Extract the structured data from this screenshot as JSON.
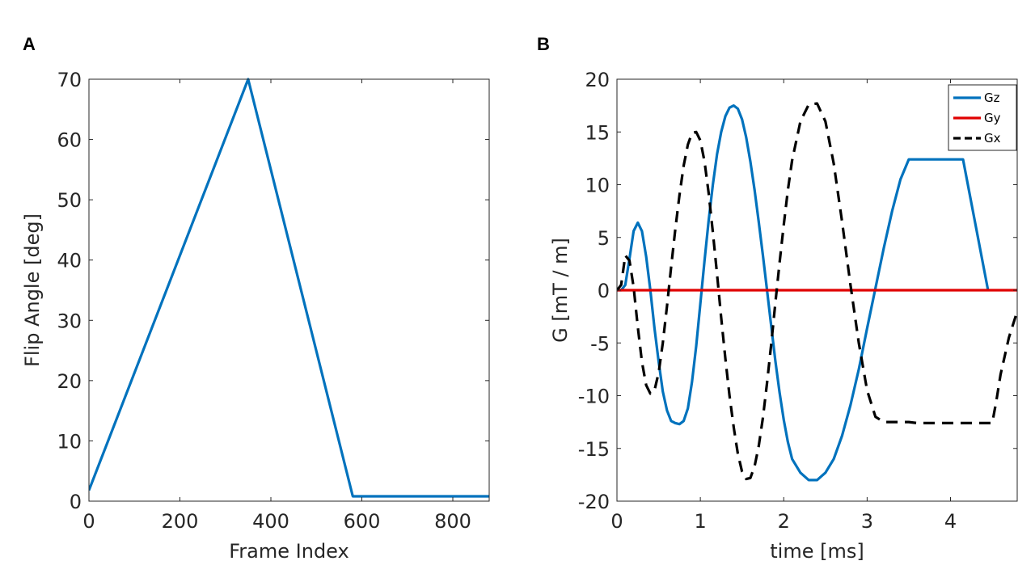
{
  "panels": {
    "a_label": "A",
    "b_label": "B"
  },
  "chart_data": [
    {
      "id": "A",
      "type": "line",
      "title": "",
      "xlabel": "Frame Index",
      "ylabel": "Flip Angle [deg]",
      "xlim": [
        0,
        880
      ],
      "ylim": [
        0,
        70
      ],
      "xticks": [
        0,
        200,
        400,
        600,
        800
      ],
      "yticks": [
        0,
        10,
        20,
        30,
        40,
        50,
        60,
        70
      ],
      "grid": false,
      "series": [
        {
          "name": "Flip Angle",
          "color": "#0072BD",
          "x": [
            0,
            350,
            580,
            880
          ],
          "y": [
            1.8,
            70,
            0.8,
            0.8
          ]
        }
      ]
    },
    {
      "id": "B",
      "type": "line",
      "title": "",
      "xlabel": "time [ms]",
      "ylabel": "G [mT / m]",
      "xlim": [
        0,
        4.8
      ],
      "ylim": [
        -20,
        20
      ],
      "xticks": [
        0,
        1,
        2,
        3,
        4
      ],
      "yticks": [
        -20,
        -15,
        -10,
        -5,
        0,
        5,
        10,
        15,
        20
      ],
      "grid": false,
      "legend": "top-right",
      "series": [
        {
          "name": "Gz",
          "color": "#0072BD",
          "style": "solid",
          "x": [
            0,
            0.05,
            0.1,
            0.15,
            0.2,
            0.25,
            0.3,
            0.35,
            0.4,
            0.45,
            0.5,
            0.55,
            0.6,
            0.65,
            0.7,
            0.75,
            0.8,
            0.85,
            0.9,
            0.95,
            1.0,
            1.05,
            1.1,
            1.15,
            1.2,
            1.25,
            1.3,
            1.35,
            1.4,
            1.45,
            1.5,
            1.55,
            1.6,
            1.65,
            1.7,
            1.75,
            1.8,
            1.85,
            1.9,
            1.95,
            2.0,
            2.05,
            2.1,
            2.2,
            2.3,
            2.4,
            2.5,
            2.6,
            2.7,
            2.8,
            2.9,
            3.0,
            3.1,
            3.2,
            3.3,
            3.4,
            3.5,
            3.6,
            3.7,
            3.75,
            4.15,
            4.45
          ],
          "y": [
            0,
            0,
            0.5,
            3.0,
            5.6,
            6.4,
            5.6,
            3.2,
            0.0,
            -3.6,
            -6.8,
            -9.6,
            -11.4,
            -12.4,
            -12.6,
            -12.7,
            -12.4,
            -11.2,
            -8.7,
            -5.3,
            -1.3,
            2.8,
            6.6,
            10.0,
            12.9,
            15.0,
            16.5,
            17.3,
            17.5,
            17.2,
            16.2,
            14.5,
            12.2,
            9.5,
            6.5,
            3.3,
            0.0,
            -3.4,
            -6.7,
            -9.7,
            -12.3,
            -14.4,
            -16.0,
            -17.3,
            -18.0,
            -18.0,
            -17.3,
            -16.0,
            -13.8,
            -10.9,
            -7.5,
            -3.6,
            0.2,
            4.0,
            7.5,
            10.5,
            12.4,
            12.4,
            12.4,
            12.4,
            12.4,
            0.0
          ]
        },
        {
          "name": "Gy",
          "color": "#E00000",
          "style": "solid",
          "x": [
            0,
            4.8
          ],
          "y": [
            0,
            0
          ]
        },
        {
          "name": "Gx",
          "color": "#000000",
          "style": "dashed",
          "x": [
            0,
            0.05,
            0.1,
            0.15,
            0.2,
            0.25,
            0.3,
            0.35,
            0.4,
            0.45,
            0.5,
            0.55,
            0.6,
            0.65,
            0.7,
            0.75,
            0.8,
            0.85,
            0.9,
            0.95,
            1.0,
            1.05,
            1.1,
            1.15,
            1.2,
            1.25,
            1.3,
            1.35,
            1.4,
            1.45,
            1.5,
            1.55,
            1.6,
            1.65,
            1.7,
            1.75,
            1.8,
            1.85,
            1.9,
            1.95,
            2.0,
            2.05,
            2.1,
            2.2,
            2.3,
            2.4,
            2.5,
            2.6,
            2.7,
            2.8,
            2.9,
            3.0,
            3.1,
            3.2,
            3.3,
            3.4,
            3.45,
            3.5,
            3.6,
            3.7,
            3.8,
            3.9,
            4.0,
            4.1,
            4.2,
            4.3,
            4.35,
            4.4,
            4.45,
            4.5,
            4.55,
            4.6,
            4.7,
            4.8
          ],
          "y": [
            0,
            0.5,
            3.3,
            2.8,
            0.3,
            -3.5,
            -6.8,
            -9.0,
            -9.8,
            -9.5,
            -7.8,
            -5.0,
            -1.5,
            2.2,
            5.8,
            9.0,
            11.8,
            13.8,
            14.9,
            15.0,
            14.2,
            12.2,
            9.2,
            5.5,
            1.5,
            -2.6,
            -6.5,
            -10.0,
            -13.0,
            -15.5,
            -17.2,
            -17.9,
            -17.8,
            -16.7,
            -14.8,
            -12.1,
            -8.8,
            -5.1,
            -1.2,
            2.6,
            6.2,
            9.5,
            12.3,
            16.0,
            17.6,
            17.7,
            16.0,
            12.0,
            6.5,
            0.5,
            -5.0,
            -9.5,
            -12.0,
            -12.5,
            -12.5,
            -12.5,
            -12.5,
            -12.5,
            -12.6,
            -12.6,
            -12.6,
            -12.6,
            -12.6,
            -12.6,
            -12.6,
            -12.6,
            -12.6,
            -12.6,
            -12.6,
            -12.6,
            -10.5,
            -8.0,
            -4.5,
            -2.0
          ]
        }
      ]
    }
  ]
}
